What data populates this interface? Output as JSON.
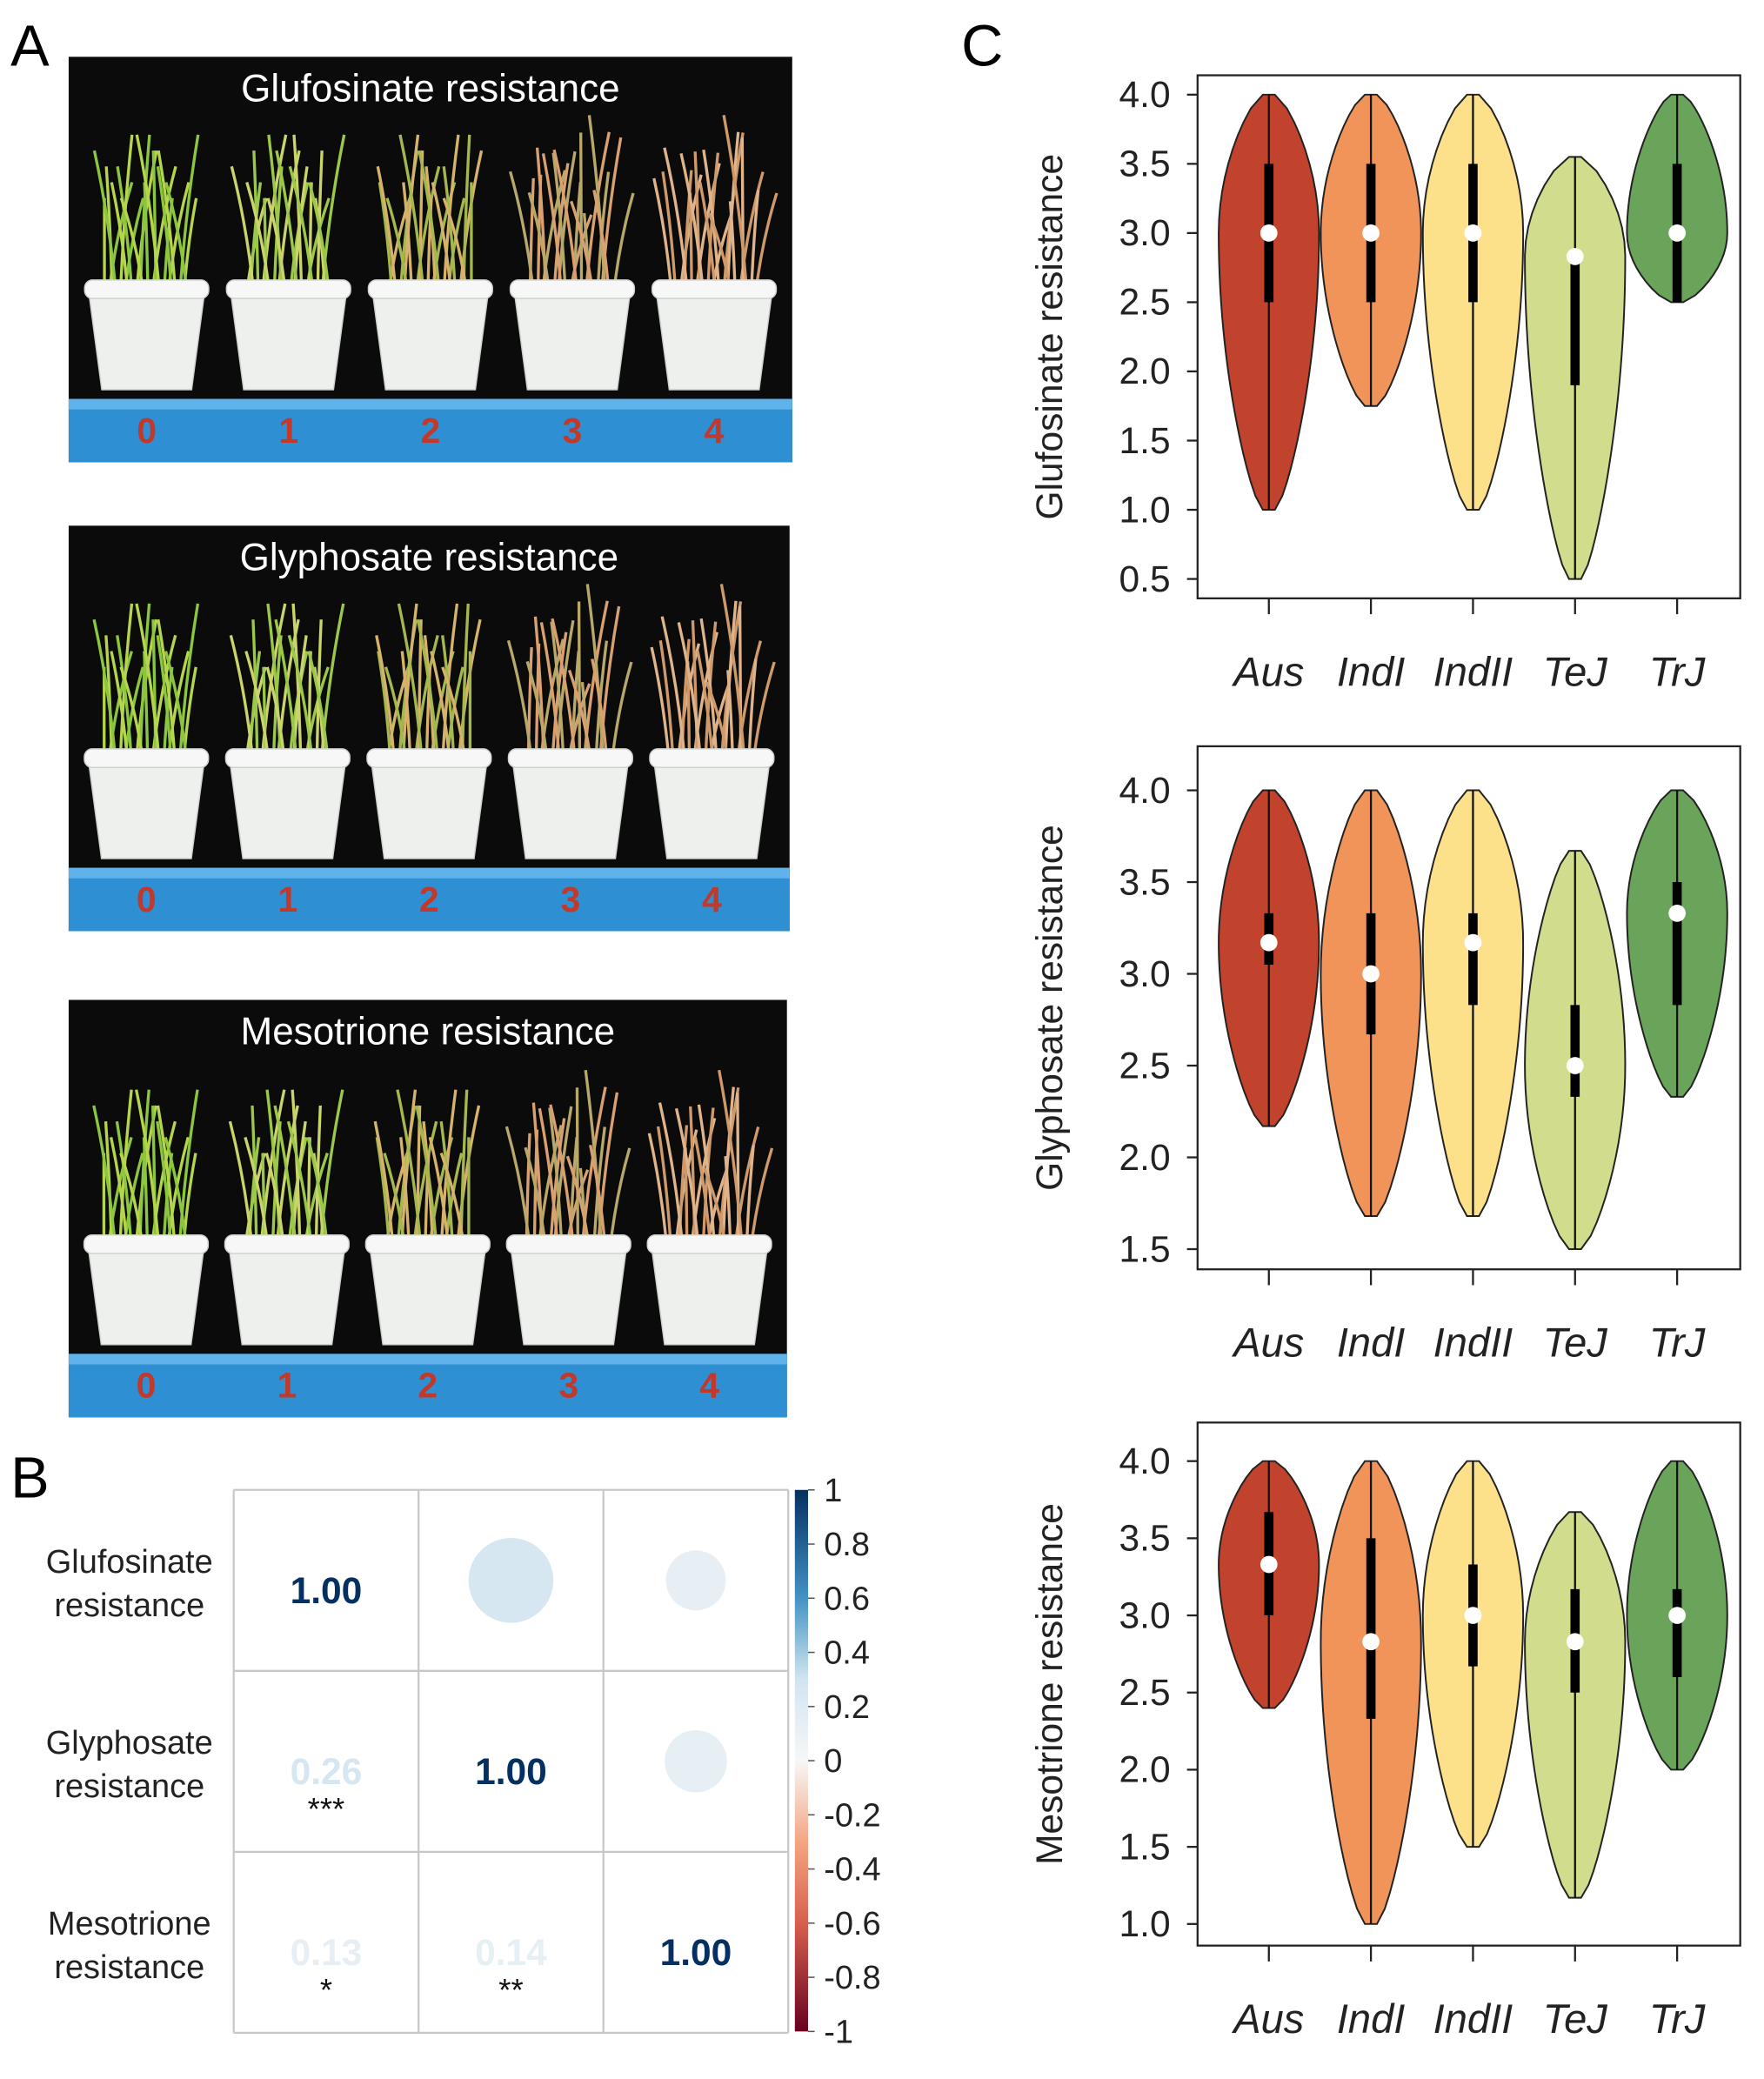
{
  "panel_labels": [
    "A",
    "B",
    "C"
  ],
  "photos": [
    {
      "title": "Glufosinate resistance",
      "scores": [
        "0",
        "1",
        "2",
        "3",
        "4"
      ]
    },
    {
      "title": "Glyphosate resistance",
      "scores": [
        "0",
        "1",
        "2",
        "3",
        "4"
      ]
    },
    {
      "title": "Mesotrione resistance",
      "scores": [
        "0",
        "1",
        "2",
        "3",
        "4"
      ]
    }
  ],
  "chart_data": [
    {
      "type": "correlation",
      "row_labels": [
        [
          "Glufosinate",
          "resistance"
        ],
        [
          "Glyphosate",
          "resistance"
        ],
        [
          "Mesotrione",
          "resistance"
        ]
      ],
      "values": [
        [
          1,
          null,
          null
        ],
        [
          0.26,
          1,
          null
        ],
        [
          0.13,
          0.14,
          1
        ]
      ],
      "value_labels": [
        [
          "1.00",
          null,
          null
        ],
        [
          "0.26",
          "1.00",
          null
        ],
        [
          "0.13",
          "0.14",
          "1.00"
        ]
      ],
      "significance": [
        [
          null,
          null,
          null
        ],
        [
          "***",
          null,
          null
        ],
        [
          "*",
          "**",
          null
        ]
      ],
      "clim": [
        -1,
        1
      ],
      "colorbar_ticks": [
        1,
        0.8,
        0.6,
        0.4,
        0.2,
        0,
        -0.2,
        -0.4,
        -0.6,
        -0.8,
        -1
      ]
    },
    {
      "type": "violin",
      "ylabel": "Glufosinate resistance",
      "categories": [
        "Aus",
        "IndI",
        "IndII",
        "TeJ",
        "TrJ"
      ],
      "colors": [
        "#c1432d",
        "#f0945a",
        "#fde08a",
        "#d1dc8c",
        "#6aa35a"
      ],
      "stats": {
        "min": [
          1.0,
          1.75,
          1.0,
          0.5,
          2.5
        ],
        "q1": [
          2.5,
          2.5,
          2.5,
          1.9,
          2.5
        ],
        "median": [
          3.0,
          3.0,
          3.0,
          2.83,
          3.0
        ],
        "q3": [
          3.5,
          3.5,
          3.5,
          2.8,
          3.5
        ],
        "max": [
          4.0,
          4.0,
          4.0,
          3.55,
          4.0
        ]
      },
      "ylim": [
        0.36,
        4.14
      ],
      "yticks": [
        {
          "value": 4,
          "label": "4.0"
        },
        3.5,
        {
          "value": 3,
          "label": "3.0"
        },
        2.5,
        {
          "value": 2,
          "label": "2.0"
        },
        1.5,
        {
          "value": 1,
          "label": "1.0"
        },
        0.5
      ]
    },
    {
      "type": "violin",
      "ylabel": "Glyphosate resistance",
      "categories": [
        "Aus",
        "IndI",
        "IndII",
        "TeJ",
        "TrJ"
      ],
      "colors": [
        "#c1432d",
        "#f0945a",
        "#fde08a",
        "#d1dc8c",
        "#6aa35a"
      ],
      "stats": {
        "min": [
          2.17,
          1.68,
          1.68,
          1.5,
          2.33
        ],
        "q1": [
          3.05,
          2.67,
          2.83,
          2.33,
          2.83
        ],
        "median": [
          3.17,
          3.0,
          3.17,
          2.5,
          3.33
        ],
        "q3": [
          3.33,
          3.33,
          3.33,
          2.83,
          3.5
        ],
        "max": [
          4.0,
          4.0,
          4.0,
          3.67,
          4.0
        ]
      },
      "ylim": [
        1.39,
        4.24
      ],
      "yticks": [
        {
          "value": 4,
          "label": "4.0"
        },
        3.5,
        {
          "value": 3,
          "label": "3.0"
        },
        2.5,
        {
          "value": 2,
          "label": "2.0"
        },
        1.5
      ]
    },
    {
      "type": "violin",
      "ylabel": "Mesotrione resistance",
      "categories": [
        "Aus",
        "IndI",
        "IndII",
        "TeJ",
        "TrJ"
      ],
      "colors": [
        "#c1432d",
        "#f0945a",
        "#fde08a",
        "#d1dc8c",
        "#6aa35a"
      ],
      "stats": {
        "min": [
          2.4,
          1.0,
          1.5,
          1.17,
          2.0
        ],
        "q1": [
          3.0,
          2.33,
          2.67,
          2.5,
          2.6
        ],
        "median": [
          3.33,
          2.83,
          3.0,
          2.83,
          3.0
        ],
        "q3": [
          3.67,
          3.5,
          3.33,
          3.17,
          3.17
        ],
        "max": [
          4.0,
          4.0,
          4.0,
          3.67,
          4.0
        ]
      },
      "ylim": [
        0.86,
        4.25
      ],
      "yticks": [
        {
          "value": 4,
          "label": "4.0"
        },
        3.5,
        {
          "value": 3,
          "label": "3.0"
        },
        2.5,
        {
          "value": 2,
          "label": "2.0"
        },
        1.5,
        {
          "value": 1,
          "label": "1.0"
        }
      ]
    }
  ]
}
